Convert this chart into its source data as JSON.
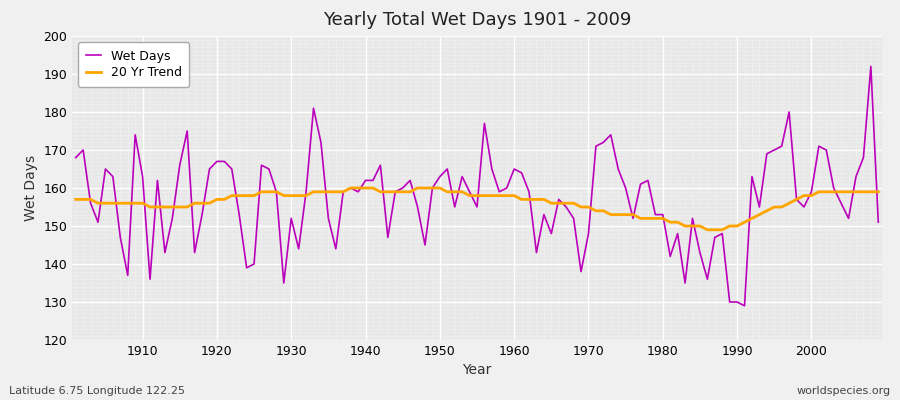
{
  "title": "Yearly Total Wet Days 1901 - 2009",
  "xlabel": "Year",
  "ylabel": "Wet Days",
  "subtitle": "Latitude 6.75 Longitude 122.25",
  "watermark": "worldspecies.org",
  "bg_color": "#f0f0f0",
  "plot_bg_color": "#e8e8e8",
  "line_color": "#bb00bb",
  "trend_color": "#ffa500",
  "ylim": [
    120,
    200
  ],
  "years": [
    1901,
    1902,
    1903,
    1904,
    1905,
    1906,
    1907,
    1908,
    1909,
    1910,
    1911,
    1912,
    1913,
    1914,
    1915,
    1916,
    1917,
    1918,
    1919,
    1920,
    1921,
    1922,
    1923,
    1924,
    1925,
    1926,
    1927,
    1928,
    1929,
    1930,
    1931,
    1932,
    1933,
    1934,
    1935,
    1936,
    1937,
    1938,
    1939,
    1940,
    1941,
    1942,
    1943,
    1944,
    1945,
    1946,
    1947,
    1948,
    1949,
    1950,
    1951,
    1952,
    1953,
    1954,
    1955,
    1956,
    1957,
    1958,
    1959,
    1960,
    1961,
    1962,
    1963,
    1964,
    1965,
    1966,
    1967,
    1968,
    1969,
    1970,
    1971,
    1972,
    1973,
    1974,
    1975,
    1976,
    1977,
    1978,
    1979,
    1980,
    1981,
    1982,
    1983,
    1984,
    1985,
    1986,
    1987,
    1988,
    1989,
    1990,
    1991,
    1992,
    1993,
    1994,
    1995,
    1996,
    1997,
    1998,
    1999,
    2000,
    2001,
    2002,
    2003,
    2004,
    2005,
    2006,
    2007,
    2008,
    2009
  ],
  "wet_days": [
    168,
    170,
    156,
    151,
    165,
    163,
    147,
    137,
    174,
    163,
    136,
    162,
    143,
    152,
    166,
    175,
    143,
    153,
    165,
    167,
    167,
    165,
    153,
    139,
    140,
    166,
    165,
    159,
    135,
    152,
    144,
    159,
    181,
    172,
    152,
    144,
    159,
    160,
    159,
    162,
    162,
    166,
    147,
    159,
    160,
    162,
    155,
    145,
    160,
    163,
    165,
    155,
    163,
    159,
    155,
    177,
    165,
    159,
    160,
    165,
    164,
    159,
    143,
    153,
    148,
    157,
    155,
    152,
    138,
    148,
    171,
    172,
    174,
    165,
    160,
    152,
    161,
    162,
    153,
    153,
    142,
    148,
    135,
    152,
    143,
    136,
    147,
    148,
    130,
    130,
    129,
    163,
    155,
    169,
    170,
    171,
    180,
    157,
    155,
    159,
    171,
    170,
    160,
    156,
    152,
    163,
    168,
    192,
    151
  ],
  "trend": [
    157,
    157,
    157,
    156,
    156,
    156,
    156,
    156,
    156,
    156,
    155,
    155,
    155,
    155,
    155,
    155,
    156,
    156,
    156,
    157,
    157,
    158,
    158,
    158,
    158,
    159,
    159,
    159,
    158,
    158,
    158,
    158,
    159,
    159,
    159,
    159,
    159,
    160,
    160,
    160,
    160,
    159,
    159,
    159,
    159,
    159,
    160,
    160,
    160,
    160,
    159,
    159,
    159,
    158,
    158,
    158,
    158,
    158,
    158,
    158,
    157,
    157,
    157,
    157,
    156,
    156,
    156,
    156,
    155,
    155,
    154,
    154,
    153,
    153,
    153,
    153,
    152,
    152,
    152,
    152,
    151,
    151,
    150,
    150,
    150,
    149,
    149,
    149,
    150,
    150,
    151,
    152,
    153,
    154,
    155,
    155,
    156,
    157,
    158,
    158,
    159,
    159,
    159,
    159,
    159,
    159,
    159,
    159,
    159
  ]
}
